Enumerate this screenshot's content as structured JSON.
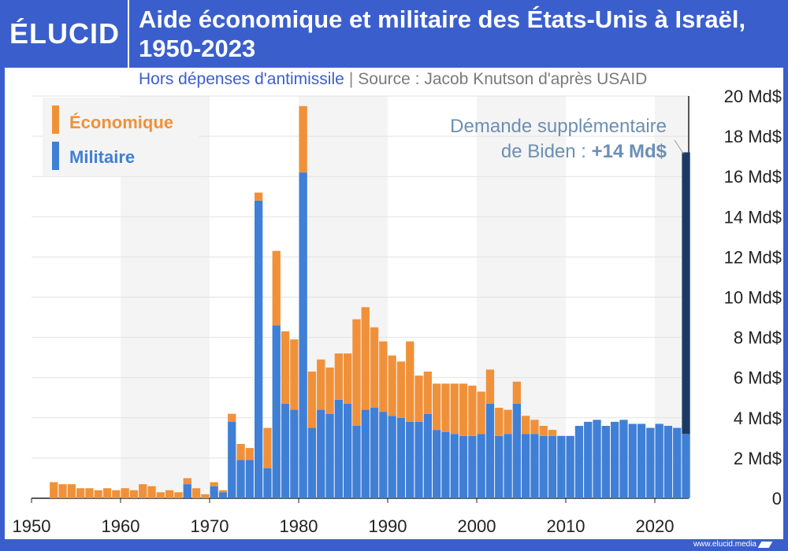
{
  "header": {
    "logo": "ÉLUCID",
    "title": "Aide économique et militaire des États-Unis à Israël, 1950-2023",
    "subtitle": "Hors dépenses d'antimissile",
    "separator": "|",
    "source": "Source : Jacob Knutson d'après USAID"
  },
  "footer": {
    "url": "www.elucid.media"
  },
  "colors": {
    "economique": "#f0913a",
    "militaire": "#3f7fd6",
    "biden": "#1b3a63",
    "annotation": "#6b8fb5",
    "brand": "#3a5fcd"
  },
  "chart_data": {
    "type": "bar",
    "stacked": true,
    "title": "Aide économique et militaire des États-Unis à Israël, 1950-2023",
    "subtitle": "Hors dépenses d'antimissile",
    "ylim": [
      0,
      20
    ],
    "yticks": [
      0,
      2,
      4,
      6,
      8,
      10,
      12,
      14,
      16,
      18,
      20
    ],
    "ytick_labels": [
      "0",
      "2 Md$",
      "4 Md$",
      "6 Md$",
      "8 Md$",
      "10 Md$",
      "12 Md$",
      "14 Md$",
      "16 Md$",
      "18 Md$",
      "20 Md$"
    ],
    "xticks": [
      1950,
      1960,
      1970,
      1980,
      1990,
      2000,
      2010,
      2020
    ],
    "xlim": [
      1950,
      2024
    ],
    "legend": {
      "position": "top-left",
      "entries": [
        "Économique",
        "Militaire"
      ]
    },
    "years": [
      1952,
      1953,
      1954,
      1955,
      1956,
      1957,
      1958,
      1959,
      1960,
      1961,
      1962,
      1963,
      1964,
      1965,
      1966,
      1967,
      1968,
      1969,
      1970,
      1971,
      1972,
      1973,
      1974,
      1975,
      1976,
      1977,
      1978,
      1979,
      1980,
      1981,
      1982,
      1983,
      1984,
      1985,
      1986,
      1987,
      1988,
      1989,
      1990,
      1991,
      1992,
      1993,
      1994,
      1995,
      1996,
      1997,
      1998,
      1999,
      2000,
      2001,
      2002,
      2003,
      2004,
      2005,
      2006,
      2007,
      2008,
      2009,
      2010,
      2011,
      2012,
      2013,
      2014,
      2015,
      2016,
      2017,
      2018,
      2019,
      2020,
      2021,
      2022,
      2023
    ],
    "series": [
      {
        "name": "Militaire",
        "values": [
          0,
          0,
          0,
          0,
          0,
          0,
          0,
          0,
          0,
          0,
          0,
          0,
          0,
          0,
          0,
          0.7,
          0,
          0,
          0.6,
          0.3,
          3.8,
          1.9,
          1.9,
          14.8,
          1.5,
          8.6,
          4.7,
          4.4,
          16.2,
          3.5,
          4.4,
          4.2,
          4.9,
          4.7,
          3.6,
          4.4,
          4.5,
          4.3,
          4.1,
          4.0,
          3.8,
          3.8,
          4.2,
          3.4,
          3.3,
          3.2,
          3.1,
          3.1,
          3.2,
          4.7,
          3.1,
          3.2,
          4.7,
          3.2,
          3.2,
          3.1,
          3.1,
          3.1,
          3.1,
          3.6,
          3.8,
          3.9,
          3.6,
          3.8,
          3.9,
          3.7,
          3.7,
          3.5,
          3.7,
          3.6,
          3.5,
          3.2
        ]
      },
      {
        "name": "Économique",
        "values": [
          0.8,
          0.7,
          0.7,
          0.5,
          0.5,
          0.4,
          0.5,
          0.4,
          0.5,
          0.4,
          0.7,
          0.6,
          0.3,
          0.4,
          0.3,
          0.3,
          0.5,
          0.2,
          0.2,
          0.1,
          0.4,
          0.8,
          0.6,
          0.4,
          2.0,
          3.7,
          3.6,
          3.5,
          3.3,
          2.8,
          2.5,
          2.3,
          2.3,
          2.5,
          5.3,
          5.1,
          4.0,
          3.5,
          3.0,
          2.8,
          4.0,
          2.3,
          2.1,
          2.3,
          2.4,
          2.5,
          2.6,
          2.5,
          2.1,
          1.7,
          1.4,
          1.2,
          1.1,
          0.9,
          0.7,
          0.5,
          0.3,
          0,
          0,
          0,
          0,
          0,
          0,
          0,
          0,
          0,
          0,
          0,
          0,
          0,
          0,
          0
        ]
      }
    ],
    "annotation": {
      "year": 2023,
      "value": 14,
      "total": 17.5,
      "text_line1": "Demande supplémentaire",
      "text_line2_prefix": "de Biden : ",
      "text_line2_bold": "+14 Md$"
    }
  }
}
